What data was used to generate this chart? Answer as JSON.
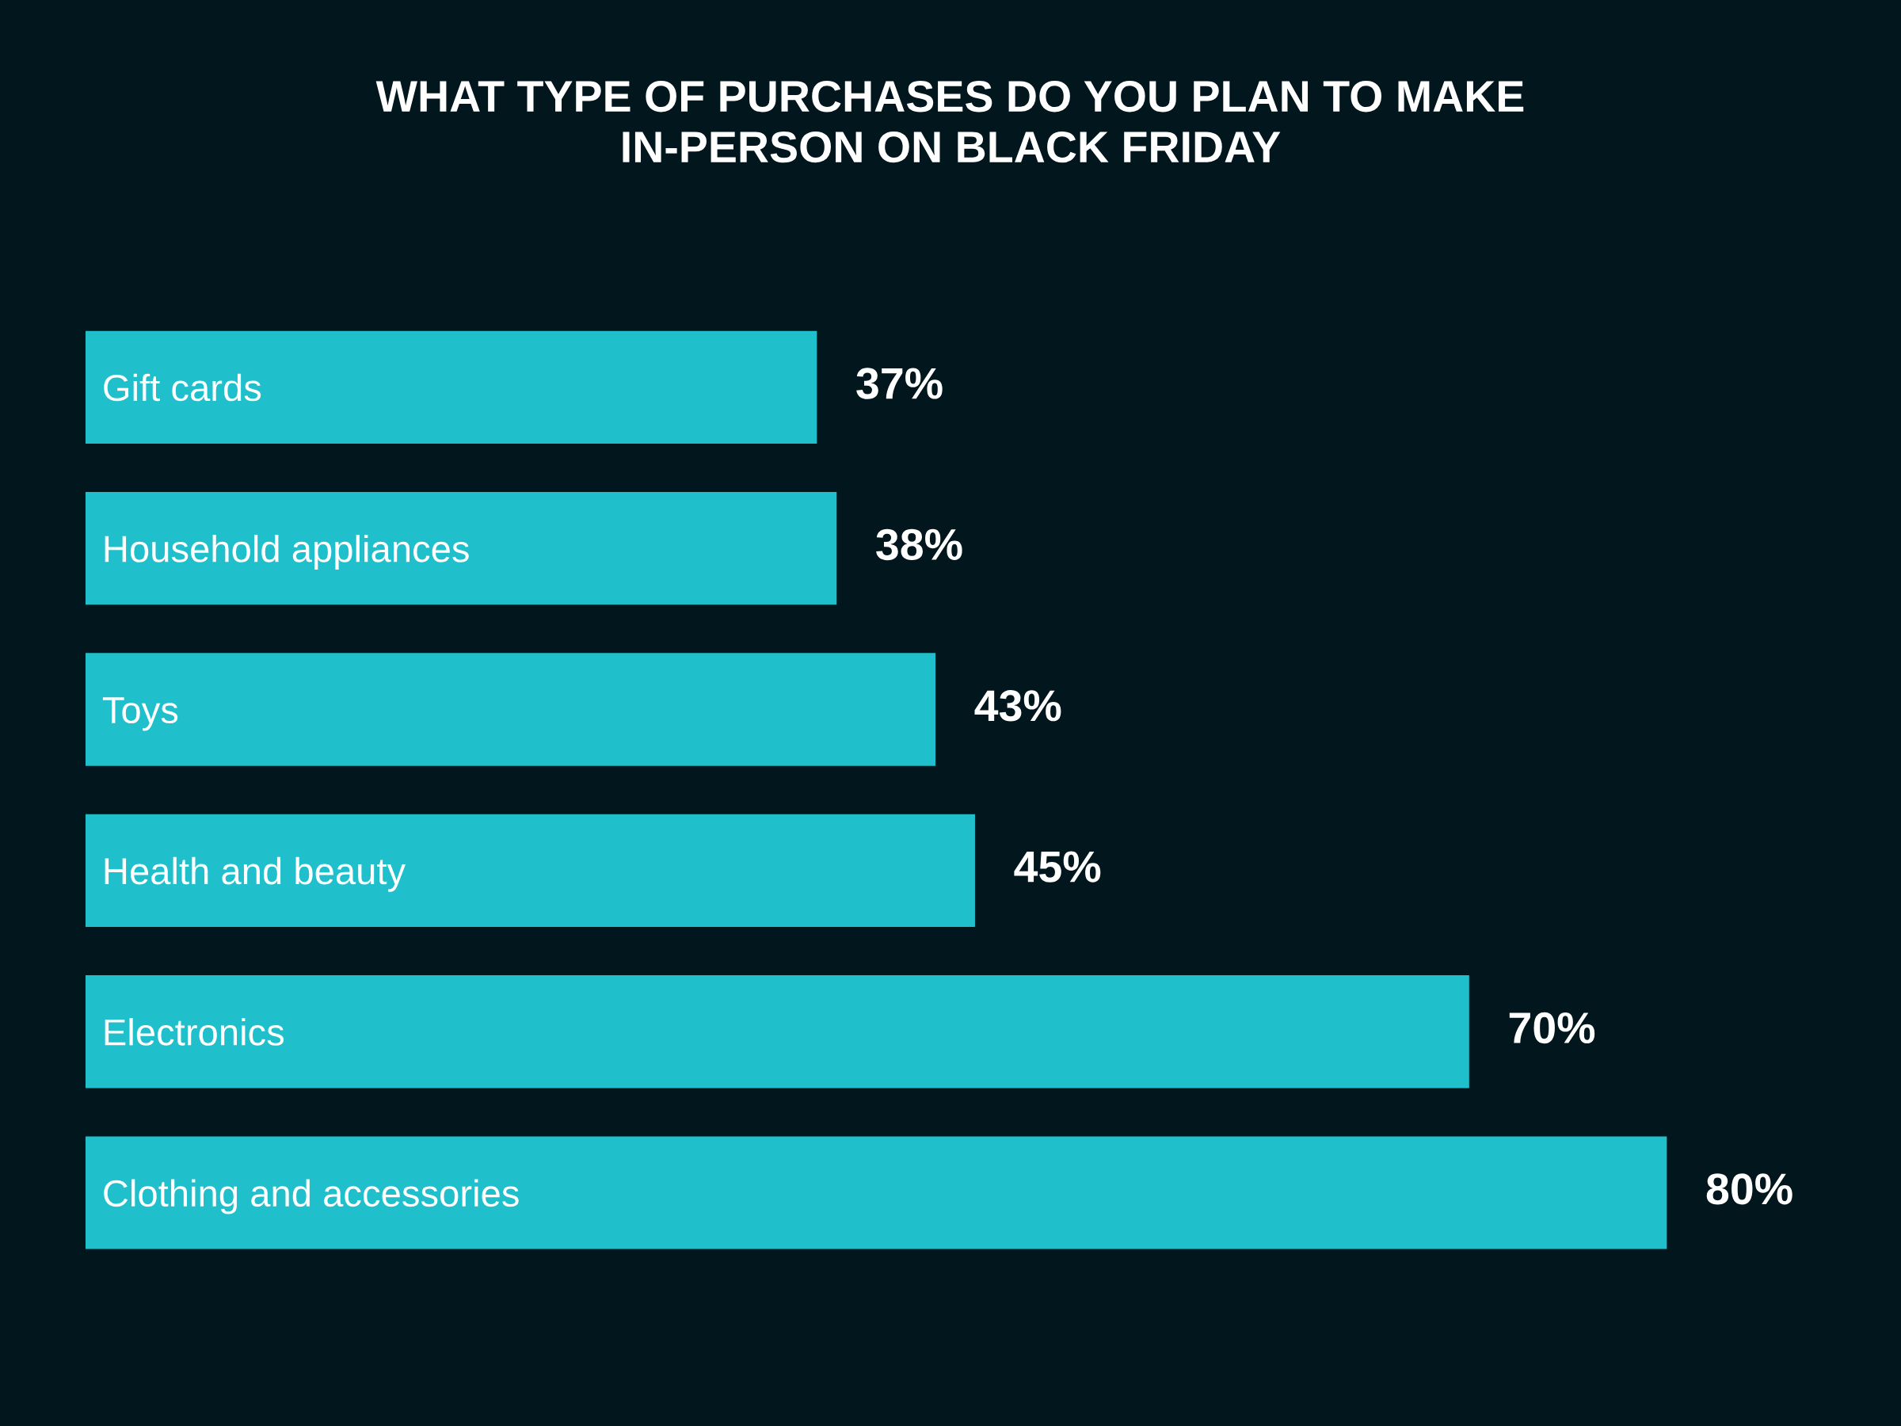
{
  "chart_data": {
    "type": "bar",
    "orientation": "horizontal",
    "title": "WHAT TYPE OF PURCHASES DO YOU PLAN TO MAKE IN-PERSON ON BLACK FRIDAY",
    "categories": [
      "Gift cards",
      "Household appliances",
      "Toys",
      "Health and beauty",
      "Electronics",
      "Clothing and accessories"
    ],
    "values": [
      37,
      38,
      43,
      45,
      70,
      80
    ],
    "value_labels": [
      "37%",
      "38%",
      "43%",
      "45%",
      "70%",
      "80%"
    ],
    "color": "#1fc0cc"
  }
}
